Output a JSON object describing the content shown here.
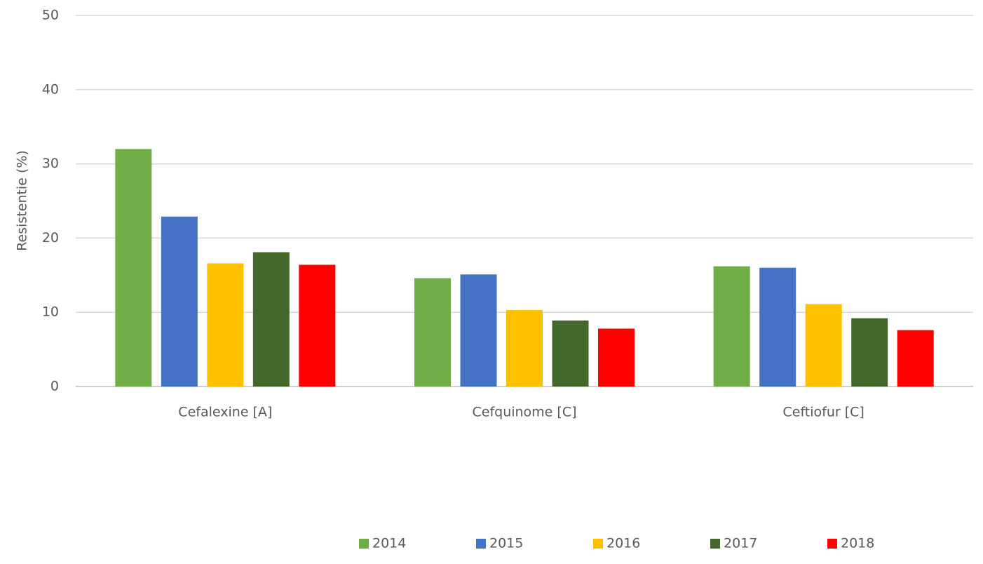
{
  "chart_data": {
    "type": "bar",
    "y_label": "Resistentie (%)",
    "categories": [
      "Cefalexine [A]",
      "Cefquinome [C]",
      "Ceftiofur [C]"
    ],
    "series": [
      {
        "name": "2014",
        "color": "#70ad47",
        "values": [
          32.0,
          14.6,
          16.2
        ]
      },
      {
        "name": "2015",
        "color": "#4472c4",
        "values": [
          22.9,
          15.1,
          16.0
        ]
      },
      {
        "name": "2016",
        "color": "#ffc000",
        "values": [
          16.6,
          10.3,
          11.1
        ]
      },
      {
        "name": "2017",
        "color": "#43682b",
        "values": [
          18.1,
          8.9,
          9.2
        ]
      },
      {
        "name": "2018",
        "color": "#ff0000",
        "values": [
          16.4,
          7.8,
          7.6
        ]
      }
    ],
    "ylim": [
      0,
      50
    ],
    "yticks": [
      0,
      10,
      20,
      30,
      40,
      50
    ],
    "grid": true,
    "legend": "bottom"
  }
}
